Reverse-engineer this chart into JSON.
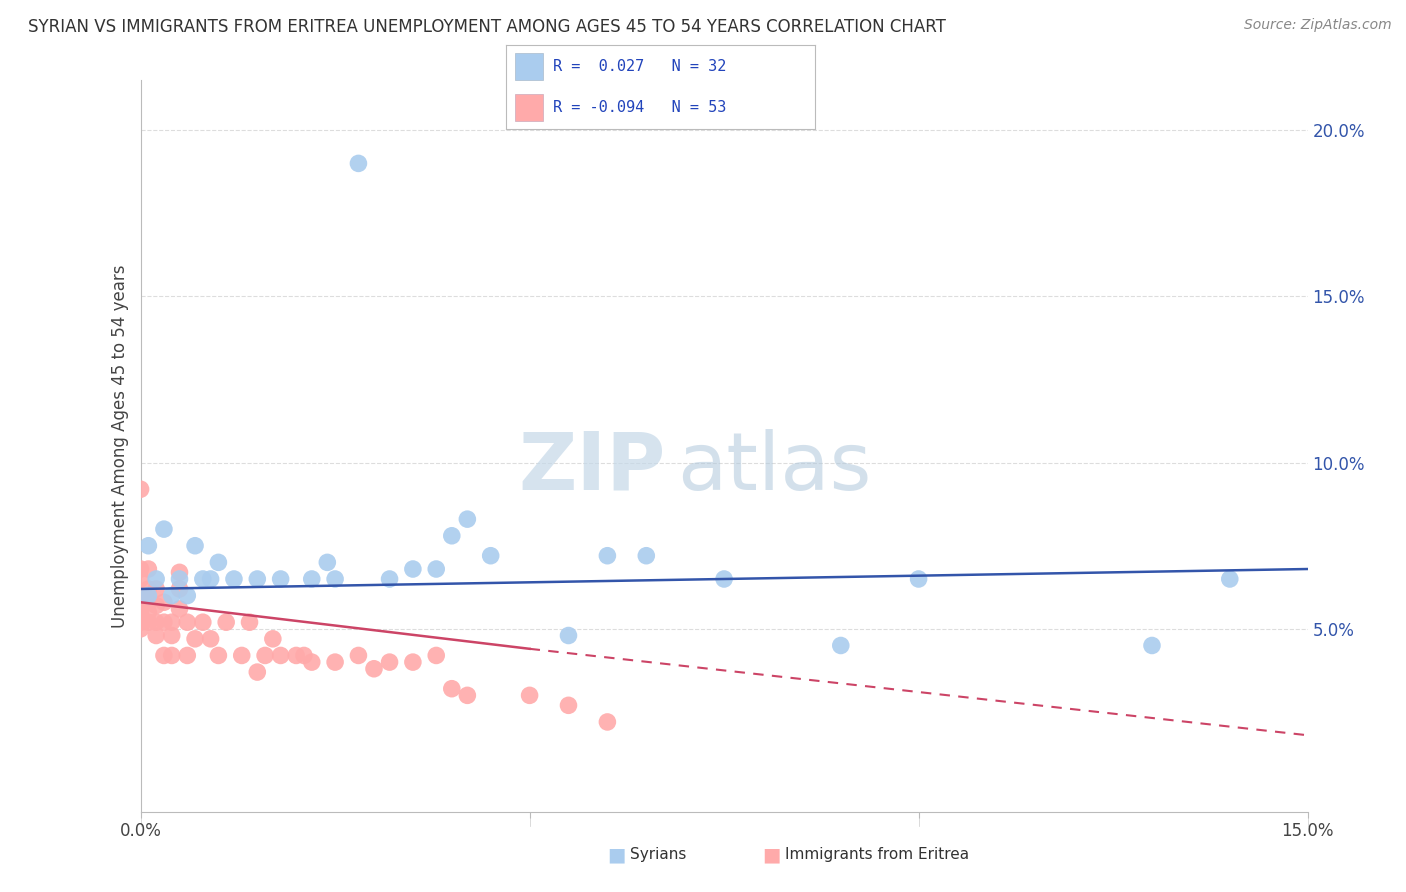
{
  "title": "SYRIAN VS IMMIGRANTS FROM ERITREA UNEMPLOYMENT AMONG AGES 45 TO 54 YEARS CORRELATION CHART",
  "source": "Source: ZipAtlas.com",
  "ylabel": "Unemployment Among Ages 45 to 54 years",
  "xlim": [
    0.0,
    0.15
  ],
  "ylim": [
    -0.005,
    0.215
  ],
  "background_color": "#ffffff",
  "grid_color": "#dddddd",
  "syrians_color": "#aaccee",
  "eritrea_color": "#ffaaaa",
  "syrians_line_color": "#3355aa",
  "eritrea_line_color": "#cc4466",
  "syrians_R": 0.027,
  "syrians_N": 32,
  "eritrea_R": -0.094,
  "eritrea_N": 53,
  "legend_label_syrians": "Syrians",
  "legend_label_eritrea": "Immigrants from Eritrea",
  "watermark_zip": "ZIP",
  "watermark_atlas": "atlas",
  "syrians_x": [
    0.001,
    0.001,
    0.002,
    0.003,
    0.004,
    0.005,
    0.006,
    0.007,
    0.008,
    0.009,
    0.01,
    0.012,
    0.015,
    0.018,
    0.022,
    0.024,
    0.025,
    0.028,
    0.032,
    0.035,
    0.038,
    0.04,
    0.042,
    0.045,
    0.055,
    0.06,
    0.065,
    0.075,
    0.09,
    0.1,
    0.13,
    0.14
  ],
  "syrians_y": [
    0.06,
    0.075,
    0.065,
    0.08,
    0.06,
    0.065,
    0.06,
    0.075,
    0.065,
    0.065,
    0.07,
    0.065,
    0.065,
    0.065,
    0.065,
    0.07,
    0.065,
    0.19,
    0.065,
    0.068,
    0.068,
    0.078,
    0.083,
    0.072,
    0.048,
    0.072,
    0.072,
    0.065,
    0.045,
    0.065,
    0.045,
    0.065
  ],
  "eritrea_x": [
    0.0,
    0.0,
    0.0,
    0.0,
    0.0,
    0.0,
    0.0,
    0.0,
    0.001,
    0.001,
    0.001,
    0.001,
    0.001,
    0.002,
    0.002,
    0.002,
    0.002,
    0.003,
    0.003,
    0.003,
    0.004,
    0.004,
    0.004,
    0.005,
    0.005,
    0.005,
    0.006,
    0.006,
    0.007,
    0.008,
    0.009,
    0.01,
    0.011,
    0.013,
    0.014,
    0.015,
    0.016,
    0.017,
    0.018,
    0.02,
    0.021,
    0.022,
    0.025,
    0.028,
    0.03,
    0.032,
    0.035,
    0.038,
    0.04,
    0.042,
    0.05,
    0.055,
    0.06
  ],
  "eritrea_y": [
    0.05,
    0.052,
    0.055,
    0.058,
    0.06,
    0.065,
    0.068,
    0.092,
    0.052,
    0.055,
    0.058,
    0.062,
    0.068,
    0.048,
    0.052,
    0.057,
    0.062,
    0.042,
    0.052,
    0.058,
    0.042,
    0.048,
    0.052,
    0.056,
    0.062,
    0.067,
    0.042,
    0.052,
    0.047,
    0.052,
    0.047,
    0.042,
    0.052,
    0.042,
    0.052,
    0.037,
    0.042,
    0.047,
    0.042,
    0.042,
    0.042,
    0.04,
    0.04,
    0.042,
    0.038,
    0.04,
    0.04,
    0.042,
    0.032,
    0.03,
    0.03,
    0.027,
    0.022
  ],
  "syrians_trend": [
    0.0,
    0.062,
    0.15,
    0.068
  ],
  "eritrea_trend_solid": [
    0.0,
    0.058,
    0.05,
    0.044
  ],
  "eritrea_trend_dashed": [
    0.05,
    0.044,
    0.15,
    0.018
  ]
}
